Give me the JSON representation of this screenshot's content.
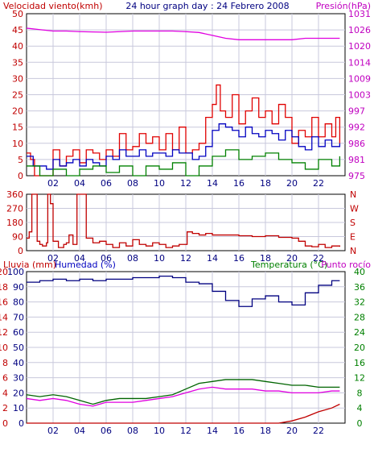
{
  "header": {
    "title": "24 hour graph day : 24 Febrero 2008",
    "left_label": "Velocidad viento(kmh)",
    "right_label": "Presión(hPa)"
  },
  "bottom_header": {
    "rain": "Lluvia (mm)",
    "humidity": "Humedad (%)",
    "temperature": "Temperatura (°C)",
    "dewpoint": "Punto rocío"
  },
  "colors": {
    "wind": "#e00000",
    "gust_fill": "#008000",
    "wind_avg": "#0000c0",
    "pressure": "#e000e0",
    "direction": "#c00000",
    "humidity": "#000080",
    "temperature": "#006400",
    "dewpoint": "#e000e0",
    "rain": "#c00000",
    "grid": "#c8c8dc"
  },
  "chart_data": [
    {
      "type": "line",
      "name": "wind-pressure",
      "x_ticks": [
        "02",
        "04",
        "06",
        "08",
        "10",
        "12",
        "14",
        "16",
        "18",
        "20",
        "22"
      ],
      "y_left_ticks": [
        "0",
        "5",
        "10",
        "15",
        "20",
        "25",
        "30",
        "35",
        "40",
        "45",
        "50"
      ],
      "y_right_ticks": [
        "975",
        "981",
        "986",
        "992",
        "997",
        "1003",
        "1009",
        "1014",
        "1020",
        "1026",
        "1031"
      ],
      "ylim_left": [
        0,
        50
      ],
      "ylim_right": [
        975,
        1031
      ],
      "xlim": [
        0,
        24
      ],
      "series": [
        {
          "key": "wind_max",
          "color_key": "wind",
          "x": [
            0,
            0.3,
            0.6,
            1,
            1.5,
            2,
            2.5,
            3,
            3.5,
            4,
            4.5,
            5,
            5.5,
            6,
            6.5,
            7,
            7.5,
            8,
            8.5,
            9,
            9.5,
            10,
            10.5,
            11,
            11.5,
            12,
            12.5,
            13,
            13.5,
            14,
            14.3,
            14.6,
            15,
            15.5,
            16,
            16.5,
            17,
            17.5,
            18,
            18.5,
            19,
            19.5,
            20,
            20.5,
            21,
            21.5,
            22,
            22.5,
            23,
            23.3,
            23.6
          ],
          "y": [
            7,
            5,
            0,
            0,
            0,
            8,
            3,
            6,
            8,
            4,
            8,
            7,
            5,
            8,
            6,
            13,
            8,
            9,
            13,
            10,
            12,
            8,
            13,
            8,
            15,
            7,
            8,
            10,
            18,
            22,
            28,
            20,
            18,
            25,
            16,
            20,
            24,
            18,
            20,
            16,
            22,
            18,
            10,
            14,
            12,
            18,
            12,
            16,
            12,
            18,
            10
          ]
        },
        {
          "key": "wind_avg",
          "color_key": "wind_avg",
          "x": [
            0,
            0.5,
            1,
            1.5,
            2,
            2.5,
            3,
            3.5,
            4,
            4.5,
            5,
            5.5,
            6,
            6.5,
            7,
            7.5,
            8,
            8.5,
            9,
            9.5,
            10,
            10.5,
            11,
            11.5,
            12,
            12.5,
            13,
            13.5,
            14,
            14.5,
            15,
            15.5,
            16,
            16.5,
            17,
            17.5,
            18,
            18.5,
            19,
            19.5,
            20,
            20.5,
            21,
            21.5,
            22,
            22.5,
            23,
            23.6
          ],
          "y": [
            6,
            3,
            3,
            2,
            5,
            3,
            4,
            5,
            3,
            5,
            4,
            3,
            6,
            5,
            8,
            6,
            6,
            8,
            6,
            7,
            7,
            6,
            8,
            7,
            7,
            5,
            6,
            9,
            14,
            16,
            15,
            14,
            12,
            15,
            13,
            12,
            14,
            13,
            11,
            14,
            12,
            9,
            8,
            12,
            9,
            11,
            9,
            10
          ]
        },
        {
          "key": "gust_min",
          "color_key": "gust_fill",
          "x": [
            0,
            1,
            2,
            3,
            4,
            5,
            6,
            7,
            8,
            9,
            10,
            11,
            12,
            13,
            14,
            15,
            16,
            17,
            18,
            19,
            20,
            21,
            22,
            23,
            23.6
          ],
          "y": [
            3,
            0,
            2,
            0,
            2,
            3,
            1,
            3,
            0,
            3,
            2,
            4,
            0,
            3,
            6,
            8,
            5,
            6,
            7,
            5,
            4,
            2,
            5,
            3,
            6
          ]
        },
        {
          "key": "pressure",
          "color_key": "pressure",
          "x": [
            0,
            1,
            2,
            3,
            4,
            5,
            6,
            7,
            8,
            9,
            10,
            11,
            12,
            13,
            14,
            15,
            16,
            17,
            18,
            19,
            20,
            21,
            22,
            23,
            23.6
          ],
          "y": [
            1026,
            1025.5,
            1025,
            1025,
            1024.8,
            1024.7,
            1024.6,
            1024.8,
            1025,
            1025,
            1025,
            1025,
            1024.8,
            1024.5,
            1023.5,
            1022.5,
            1022,
            1022,
            1022,
            1022,
            1022,
            1022.5,
            1022.5,
            1022.5,
            1022.5
          ]
        }
      ]
    },
    {
      "type": "line",
      "name": "wind-direction",
      "x_ticks": [
        "02",
        "04",
        "06",
        "08",
        "10",
        "12",
        "14",
        "16",
        "18",
        "20",
        "22"
      ],
      "y_left_ticks": [
        "360",
        "270",
        "180",
        "90",
        "0"
      ],
      "y_right_ticks": [
        "N",
        "W",
        "S",
        "E",
        "N"
      ],
      "ylim_left": [
        0,
        360
      ],
      "xlim": [
        0,
        24
      ],
      "series": [
        {
          "key": "direction",
          "color_key": "direction",
          "x": [
            0,
            0.2,
            0.4,
            0.6,
            0.8,
            1,
            1.2,
            1.5,
            1.6,
            1.8,
            2,
            2.4,
            2.8,
            3,
            3.2,
            3.5,
            3.8,
            4,
            4.5,
            5,
            5.5,
            6,
            6.5,
            7,
            7.5,
            8,
            8.5,
            9,
            9.5,
            10,
            10.5,
            11,
            11.5,
            12,
            12.1,
            12.5,
            13,
            13.5,
            14,
            15,
            16,
            17,
            18,
            19,
            20,
            20.5,
            21,
            21.5,
            22,
            22.5,
            23,
            23.6
          ],
          "y": [
            80,
            120,
            360,
            360,
            60,
            40,
            30,
            50,
            360,
            300,
            60,
            20,
            40,
            50,
            100,
            40,
            360,
            360,
            80,
            50,
            60,
            40,
            20,
            50,
            30,
            70,
            40,
            30,
            50,
            40,
            20,
            30,
            40,
            40,
            120,
            110,
            100,
            110,
            100,
            100,
            95,
            90,
            95,
            85,
            80,
            60,
            30,
            25,
            40,
            20,
            30,
            25
          ]
        }
      ]
    },
    {
      "type": "line",
      "name": "humidity-temperature",
      "x_ticks": [
        "02",
        "04",
        "06",
        "08",
        "10",
        "12",
        "14",
        "16",
        "18",
        "20",
        "22"
      ],
      "y_left_ticks": [
        "0",
        "2",
        "4",
        "6",
        "8",
        "10",
        "12",
        "14",
        "16",
        "18",
        "20"
      ],
      "y_mid_ticks": [
        "0",
        "10",
        "20",
        "30",
        "40",
        "50",
        "60",
        "70",
        "80",
        "90",
        "100"
      ],
      "y_right_ticks": [
        "0",
        "4",
        "8",
        "12",
        "16",
        "20",
        "24",
        "28",
        "32",
        "36",
        "40"
      ],
      "ylim_humidity": [
        0,
        100
      ],
      "ylim_temperature": [
        0,
        40
      ],
      "ylim_rain": [
        0,
        20
      ],
      "xlim": [
        0,
        24
      ],
      "series": [
        {
          "key": "humidity",
          "color_key": "humidity",
          "x": [
            0,
            1,
            2,
            3,
            4,
            5,
            6,
            7,
            8,
            9,
            10,
            11,
            12,
            13,
            14,
            15,
            16,
            17,
            18,
            19,
            20,
            21,
            22,
            23,
            23.6
          ],
          "y": [
            93,
            94,
            95,
            94,
            95,
            94,
            95,
            95,
            96,
            96,
            97,
            96,
            93,
            92,
            87,
            81,
            77,
            82,
            84,
            80,
            78,
            86,
            91,
            94,
            94
          ]
        },
        {
          "key": "temperature",
          "color_key": "temperature",
          "x": [
            0,
            1,
            2,
            3,
            4,
            5,
            6,
            7,
            8,
            9,
            10,
            11,
            12,
            13,
            14,
            15,
            16,
            17,
            18,
            19,
            20,
            21,
            22,
            23,
            23.6
          ],
          "y": [
            7.5,
            7,
            7.5,
            7,
            6,
            5,
            6,
            6.5,
            6.5,
            6.5,
            7,
            7.5,
            9,
            10.5,
            11,
            11.5,
            11.5,
            11.5,
            11,
            10.5,
            10,
            10,
            9.5,
            9.5,
            9.5
          ]
        },
        {
          "key": "dewpoint",
          "color_key": "dewpoint",
          "x": [
            0,
            1,
            2,
            3,
            4,
            5,
            6,
            7,
            8,
            9,
            10,
            11,
            12,
            13,
            14,
            15,
            16,
            17,
            18,
            19,
            20,
            21,
            22,
            23,
            23.6
          ],
          "y": [
            6.5,
            6,
            6.5,
            6,
            5,
            4.5,
            5.5,
            5.5,
            5.5,
            6,
            6.5,
            7,
            8,
            9,
            9.5,
            9,
            9,
            9,
            8.5,
            8.5,
            8,
            8,
            8,
            8.5,
            8.5
          ]
        },
        {
          "key": "rain",
          "color_key": "rain",
          "x": [
            0,
            19,
            20,
            21,
            22,
            23,
            23.6
          ],
          "y": [
            0,
            0,
            0.3,
            0.8,
            1.5,
            2,
            2.5
          ]
        }
      ]
    }
  ]
}
